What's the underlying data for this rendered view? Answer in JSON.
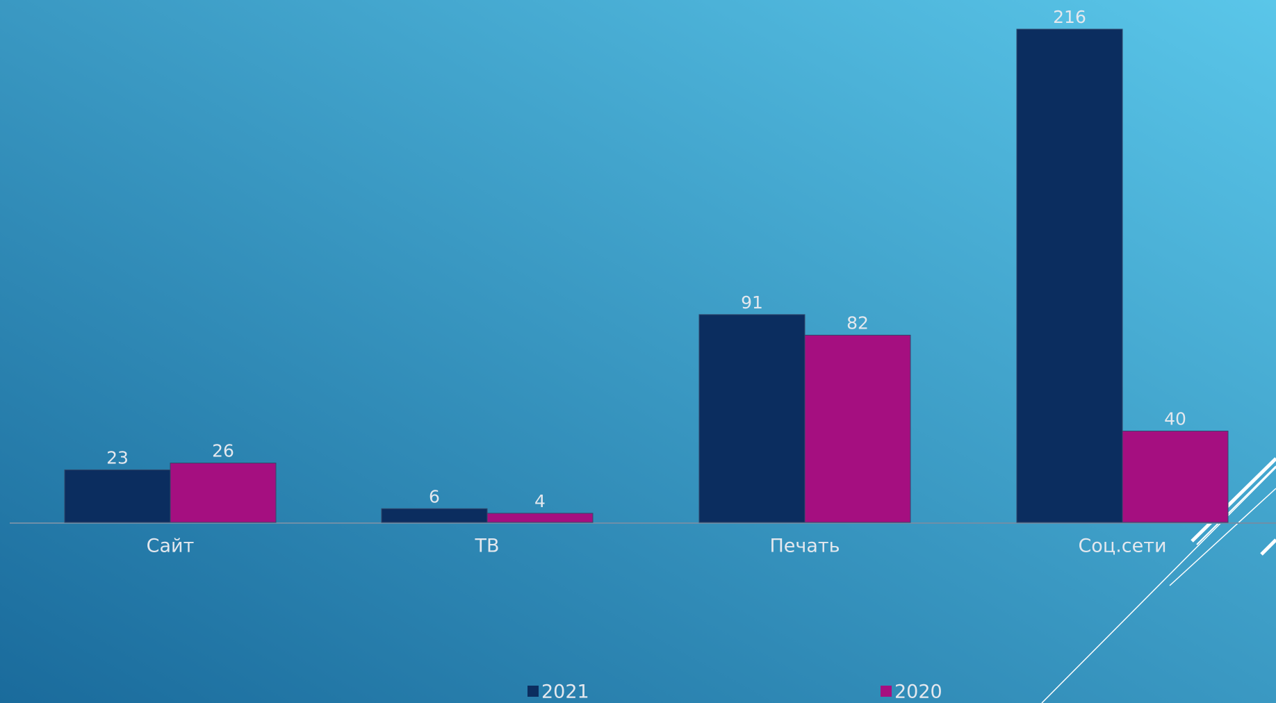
{
  "chart_data": {
    "type": "bar",
    "categories": [
      "Сайт",
      "ТВ",
      "Печать",
      "Соц.сети"
    ],
    "series": [
      {
        "name": "2021",
        "color": "#0b2d5f",
        "values": [
          23,
          6,
          91,
          216
        ]
      },
      {
        "name": "2020",
        "color": "#a50f80",
        "values": [
          26,
          4,
          82,
          40
        ]
      }
    ]
  }
}
